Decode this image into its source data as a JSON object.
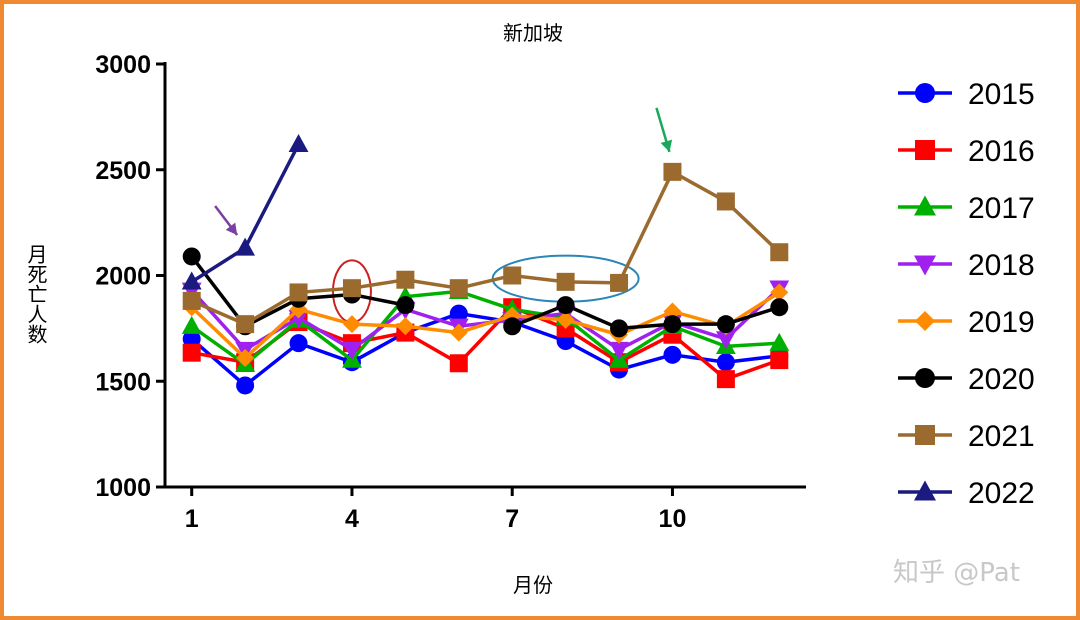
{
  "chart_data": {
    "type": "line",
    "title": "新加坡",
    "xlabel": "月份",
    "ylabel": "月死亡人数",
    "x": [
      1,
      2,
      3,
      4,
      5,
      6,
      7,
      8,
      9,
      10,
      11,
      12
    ],
    "x_ticks": [
      "1",
      "4",
      "7",
      "10"
    ],
    "y_ticks": [
      "1000",
      "1500",
      "2000",
      "2500",
      "3000"
    ],
    "ylim": [
      1000,
      3000
    ],
    "xlim": [
      0.5,
      12.5
    ],
    "grid": false,
    "legend_position": "right",
    "series": [
      {
        "name": "2015",
        "color": "#0000ff",
        "marker": "circle",
        "values": [
          1700,
          1480,
          1680,
          1590,
          1730,
          1820,
          1780,
          1690,
          1555,
          1625,
          1590,
          1620
        ]
      },
      {
        "name": "2016",
        "color": "#ff0000",
        "marker": "square",
        "values": [
          1635,
          1590,
          1780,
          1680,
          1730,
          1585,
          1850,
          1750,
          1590,
          1720,
          1510,
          1600
        ]
      },
      {
        "name": "2017",
        "color": "#00b000",
        "marker": "triangle-up",
        "values": [
          1760,
          1580,
          1790,
          1600,
          1900,
          1925,
          1840,
          1800,
          1600,
          1760,
          1665,
          1680
        ]
      },
      {
        "name": "2018",
        "color": "#a020f0",
        "marker": "triangle-down",
        "values": [
          1930,
          1650,
          1800,
          1650,
          1840,
          1760,
          1790,
          1820,
          1650,
          1780,
          1700,
          1940
        ]
      },
      {
        "name": "2019",
        "color": "#ff8c00",
        "marker": "diamond",
        "values": [
          1850,
          1610,
          1840,
          1770,
          1760,
          1730,
          1810,
          1790,
          1720,
          1830,
          1760,
          1920
        ]
      },
      {
        "name": "2020",
        "color": "#000000",
        "marker": "circle",
        "values": [
          2090,
          1760,
          1890,
          1910,
          1860,
          null,
          1760,
          1860,
          1750,
          1770,
          1770,
          1850
        ]
      },
      {
        "name": "2021",
        "color": "#9b6a2f",
        "marker": "square",
        "values": [
          1880,
          1770,
          1920,
          1940,
          1980,
          1940,
          2000,
          1970,
          1965,
          2490,
          2350,
          2110
        ]
      },
      {
        "name": "2022",
        "color": "#1a1a80",
        "marker": "triangle-up",
        "values": [
          1970,
          2130,
          2620,
          null,
          null,
          null,
          null,
          null,
          null,
          null,
          null,
          null
        ]
      }
    ],
    "annotations": [
      {
        "type": "arrow",
        "color": "#7b3fa3",
        "points_to": {
          "x": 2,
          "y": 2130
        }
      },
      {
        "type": "arrow",
        "color": "#1aa85a",
        "points_to": {
          "x": 10,
          "y": 2490
        }
      },
      {
        "type": "ellipse",
        "color": "#cc2222",
        "around": {
          "x": 4,
          "y": 1925
        }
      },
      {
        "type": "ellipse",
        "color": "#2a86b5",
        "around": {
          "x": 8,
          "y": 1985
        }
      }
    ]
  },
  "watermark": "知乎 @Pat"
}
